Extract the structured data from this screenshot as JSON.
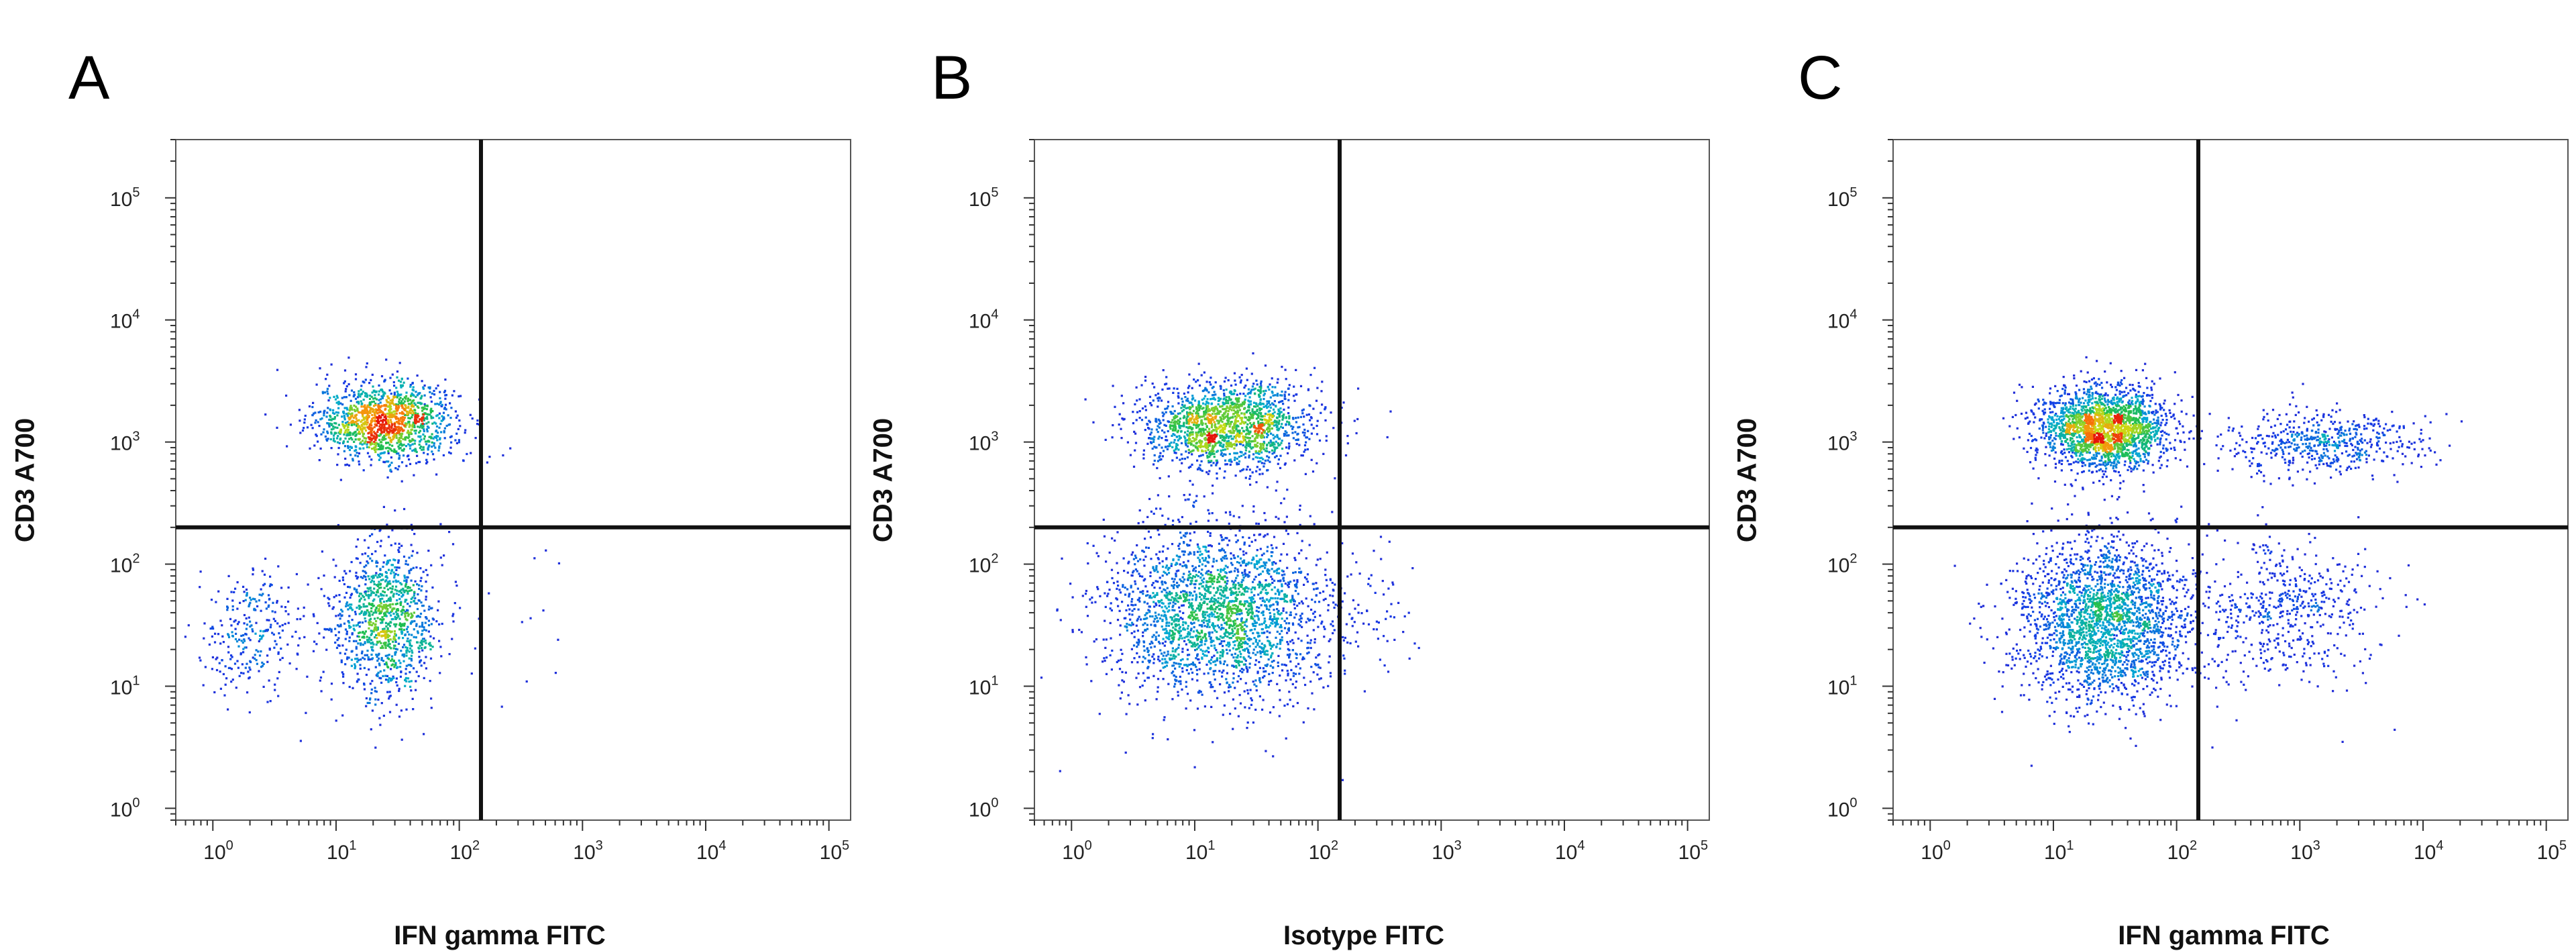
{
  "chart_data": [
    {
      "type": "scatter",
      "panel_label": "A",
      "xlabel": "IFN gamma FITC",
      "ylabel": "CD3 A700",
      "x_scale": "log",
      "y_scale": "log",
      "xlim": [
        0.5,
        150000
      ],
      "ylim": [
        0.8,
        300000
      ],
      "x_ticks": [
        {
          "base": "10",
          "exp": "0"
        },
        {
          "base": "10",
          "exp": "1"
        },
        {
          "base": "10",
          "exp": "2"
        },
        {
          "base": "10",
          "exp": "3"
        },
        {
          "base": "10",
          "exp": "4"
        },
        {
          "base": "10",
          "exp": "5"
        }
      ],
      "y_ticks": [
        {
          "base": "10",
          "exp": "0"
        },
        {
          "base": "10",
          "exp": "1"
        },
        {
          "base": "10",
          "exp": "2"
        },
        {
          "base": "10",
          "exp": "3"
        },
        {
          "base": "10",
          "exp": "4"
        },
        {
          "base": "10",
          "exp": "5"
        }
      ],
      "quadrant_gate": {
        "x": 150,
        "y": 200
      },
      "populations": [
        {
          "x": 25,
          "y": 1500,
          "sx": 0.28,
          "sy": 0.16,
          "n": 1400
        },
        {
          "x": 25,
          "y": 35,
          "sx": 0.22,
          "sy": 0.32,
          "n": 1100
        },
        {
          "x": 2,
          "y": 28,
          "sx": 0.22,
          "sy": 0.25,
          "n": 280
        },
        {
          "x": 400,
          "y": 40,
          "sx": 0.2,
          "sy": 0.3,
          "n": 10
        }
      ]
    },
    {
      "type": "scatter",
      "panel_label": "B",
      "xlabel": "Isotype FITC",
      "ylabel": "CD3 A700",
      "x_scale": "log",
      "y_scale": "log",
      "xlim": [
        0.5,
        150000
      ],
      "ylim": [
        0.8,
        300000
      ],
      "x_ticks": [
        {
          "base": "10",
          "exp": "0"
        },
        {
          "base": "10",
          "exp": "1"
        },
        {
          "base": "10",
          "exp": "2"
        },
        {
          "base": "10",
          "exp": "3"
        },
        {
          "base": "10",
          "exp": "4"
        },
        {
          "base": "10",
          "exp": "5"
        }
      ],
      "y_ticks": [
        {
          "base": "10",
          "exp": "0"
        },
        {
          "base": "10",
          "exp": "1"
        },
        {
          "base": "10",
          "exp": "2"
        },
        {
          "base": "10",
          "exp": "3"
        },
        {
          "base": "10",
          "exp": "4"
        },
        {
          "base": "10",
          "exp": "5"
        }
      ],
      "quadrant_gate": {
        "x": 150,
        "y": 200
      },
      "populations": [
        {
          "x": 18,
          "y": 1400,
          "sx": 0.35,
          "sy": 0.18,
          "n": 1700
        },
        {
          "x": 15,
          "y": 40,
          "sx": 0.45,
          "sy": 0.35,
          "n": 2400
        },
        {
          "x": 300,
          "y": 40,
          "sx": 0.22,
          "sy": 0.3,
          "n": 45
        }
      ]
    },
    {
      "type": "scatter",
      "panel_label": "C",
      "xlabel": "IFN gamma FITC",
      "ylabel": "CD3 A700",
      "x_scale": "log",
      "y_scale": "log",
      "xlim": [
        0.5,
        150000
      ],
      "ylim": [
        0.8,
        300000
      ],
      "x_ticks": [
        {
          "base": "10",
          "exp": "0"
        },
        {
          "base": "10",
          "exp": "1"
        },
        {
          "base": "10",
          "exp": "2"
        },
        {
          "base": "10",
          "exp": "3"
        },
        {
          "base": "10",
          "exp": "4"
        },
        {
          "base": "10",
          "exp": "5"
        }
      ],
      "y_ticks": [
        {
          "base": "10",
          "exp": "0"
        },
        {
          "base": "10",
          "exp": "1"
        },
        {
          "base": "10",
          "exp": "2"
        },
        {
          "base": "10",
          "exp": "3"
        },
        {
          "base": "10",
          "exp": "4"
        },
        {
          "base": "10",
          "exp": "5"
        }
      ],
      "quadrant_gate": {
        "x": 150,
        "y": 200
      },
      "populations": [
        {
          "x": 25,
          "y": 1300,
          "sx": 0.26,
          "sy": 0.17,
          "n": 2100
        },
        {
          "x": 25,
          "y": 35,
          "sx": 0.35,
          "sy": 0.33,
          "n": 2300
        },
        {
          "x": 1500,
          "y": 1000,
          "sx": 0.38,
          "sy": 0.13,
          "n": 550
        },
        {
          "x": 700,
          "y": 40,
          "sx": 0.38,
          "sy": 0.3,
          "n": 550
        }
      ]
    }
  ]
}
